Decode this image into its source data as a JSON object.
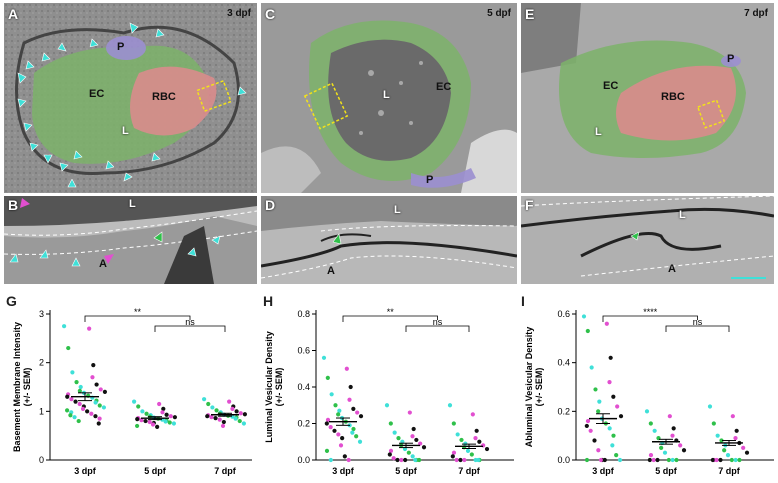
{
  "figure": {
    "panels": [
      {
        "label": "A",
        "stage": "3 dpf",
        "structures": [
          "P",
          "EC",
          "RBC",
          "L"
        ]
      },
      {
        "label": "C",
        "stage": "5 dpf",
        "structures": [
          "L",
          "EC",
          "P"
        ]
      },
      {
        "label": "E",
        "stage": "7 dpf",
        "structures": [
          "EC",
          "RBC",
          "P",
          "L"
        ]
      },
      {
        "label": "B",
        "structures": [
          "L",
          "A"
        ]
      },
      {
        "label": "D",
        "structures": [
          "L",
          "A"
        ]
      },
      {
        "label": "F",
        "structures": [
          "L",
          "A"
        ]
      }
    ],
    "colors": {
      "endothelial": "#7db36a",
      "rbc": "#d98c8c",
      "pericyte": "#9b8fd0",
      "box": "#f2e21a",
      "arrow_cyan": "#3fe0d8",
      "arrow_green": "#2fc04a",
      "arrow_magenta": "#e24fd0"
    }
  },
  "chart_data": [
    {
      "panel": "G",
      "type": "scatter",
      "ylabel": "Basement Membrane Intensity (+/- SEM)",
      "categories": [
        "3 dpf",
        "5 dpf",
        "7 dpf"
      ],
      "ylim": [
        0,
        3
      ],
      "yticks": [
        0,
        1,
        2,
        3
      ],
      "means": [
        1.3,
        0.86,
        0.93
      ],
      "sem": [
        0.08,
        0.03,
        0.03
      ],
      "significance": [
        {
          "pair": [
            "3 dpf",
            "5 dpf/7 dpf"
          ],
          "label": "**"
        },
        {
          "pair": [
            "5 dpf",
            "7 dpf"
          ],
          "label": "ns"
        }
      ],
      "points": [
        [
          2.75,
          2.7,
          2.3,
          1.95,
          1.8,
          1.7,
          1.6,
          1.55,
          1.5,
          1.45,
          1.42,
          1.4,
          1.38,
          1.35,
          1.32,
          1.3,
          1.28,
          1.25,
          1.22,
          1.2,
          1.18,
          1.15,
          1.12,
          1.1,
          1.08,
          1.05,
          1.02,
          1.0,
          0.98,
          0.95,
          0.92,
          0.9,
          0.88,
          0.85,
          0.8,
          0.75
        ],
        [
          1.2,
          1.15,
          1.1,
          1.05,
          1.0,
          0.98,
          0.95,
          0.93,
          0.92,
          0.9,
          0.89,
          0.88,
          0.87,
          0.86,
          0.85,
          0.84,
          0.83,
          0.82,
          0.81,
          0.8,
          0.79,
          0.78,
          0.77,
          0.76,
          0.75,
          0.73,
          0.7,
          0.68
        ],
        [
          1.25,
          1.2,
          1.15,
          1.1,
          1.08,
          1.05,
          1.02,
          1.0,
          0.98,
          0.96,
          0.95,
          0.94,
          0.93,
          0.92,
          0.91,
          0.9,
          0.89,
          0.88,
          0.87,
          0.86,
          0.85,
          0.83,
          0.8,
          0.78,
          0.75,
          0.7
        ]
      ]
    },
    {
      "panel": "H",
      "type": "scatter",
      "ylabel": "Luminal Vesicular Density (+/- SEM)",
      "categories": [
        "3 dpf",
        "5 dpf",
        "7 dpf"
      ],
      "ylim": [
        0,
        0.8
      ],
      "yticks": [
        0.0,
        0.2,
        0.4,
        0.6,
        0.8
      ],
      "means": [
        0.21,
        0.08,
        0.075
      ],
      "sem": [
        0.02,
        0.012,
        0.012
      ],
      "significance": [
        {
          "pair": [
            "3 dpf",
            "5 dpf/7 dpf"
          ],
          "label": "**"
        },
        {
          "pair": [
            "5 dpf",
            "7 dpf"
          ],
          "label": "ns"
        }
      ],
      "points": [
        [
          0.56,
          0.5,
          0.45,
          0.4,
          0.36,
          0.33,
          0.3,
          0.28,
          0.27,
          0.26,
          0.25,
          0.24,
          0.23,
          0.22,
          0.21,
          0.2,
          0.19,
          0.18,
          0.17,
          0.16,
          0.15,
          0.14,
          0.13,
          0.12,
          0.1,
          0.08,
          0.05,
          0.02,
          0.0,
          0.0
        ],
        [
          0.3,
          0.26,
          0.2,
          0.17,
          0.15,
          0.13,
          0.12,
          0.11,
          0.1,
          0.09,
          0.08,
          0.07,
          0.06,
          0.05,
          0.04,
          0.03,
          0.02,
          0.01,
          0.0,
          0.0,
          0.0,
          0.0,
          0.0,
          0.0
        ],
        [
          0.3,
          0.25,
          0.2,
          0.16,
          0.14,
          0.12,
          0.11,
          0.1,
          0.09,
          0.08,
          0.07,
          0.06,
          0.05,
          0.04,
          0.03,
          0.02,
          0.0,
          0.0,
          0.0,
          0.0,
          0.0,
          0.0
        ]
      ]
    },
    {
      "panel": "I",
      "type": "scatter",
      "ylabel": "Abluminal Vesicular Density (+/- SEM)",
      "categories": [
        "3 dpf",
        "5 dpf",
        "7 dpf"
      ],
      "ylim": [
        0,
        0.6
      ],
      "yticks": [
        0.0,
        0.2,
        0.4,
        0.6
      ],
      "means": [
        0.17,
        0.075,
        0.07
      ],
      "sem": [
        0.02,
        0.01,
        0.01
      ],
      "significance": [
        {
          "pair": [
            "3 dpf",
            "5 dpf/7 dpf"
          ],
          "label": "****"
        },
        {
          "pair": [
            "5 dpf",
            "7 dpf"
          ],
          "label": "ns"
        }
      ],
      "points": [
        [
          0.59,
          0.56,
          0.53,
          0.42,
          0.38,
          0.32,
          0.29,
          0.26,
          0.24,
          0.22,
          0.2,
          0.18,
          0.17,
          0.16,
          0.15,
          0.14,
          0.13,
          0.12,
          0.1,
          0.08,
          0.06,
          0.04,
          0.02,
          0.0,
          0.0,
          0.0,
          0.0,
          0.0
        ],
        [
          0.2,
          0.18,
          0.15,
          0.13,
          0.12,
          0.1,
          0.09,
          0.08,
          0.07,
          0.06,
          0.05,
          0.04,
          0.03,
          0.02,
          0.0,
          0.0,
          0.0,
          0.0,
          0.0,
          0.0
        ],
        [
          0.22,
          0.18,
          0.15,
          0.12,
          0.1,
          0.09,
          0.08,
          0.07,
          0.06,
          0.05,
          0.04,
          0.03,
          0.02,
          0.0,
          0.0,
          0.0,
          0.0,
          0.0,
          0.0,
          0.0
        ]
      ]
    }
  ]
}
